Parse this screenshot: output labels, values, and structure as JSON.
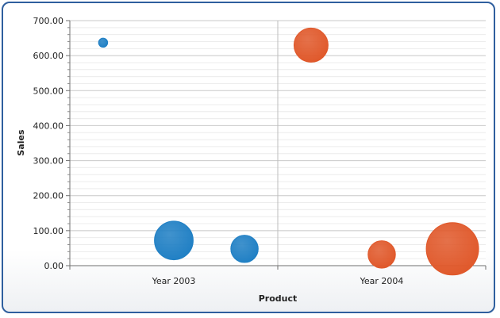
{
  "chart_data": {
    "type": "bubble",
    "title": "",
    "xlabel": "Product",
    "ylabel": "Sales",
    "categories": [
      "Year 2003",
      "Year 2004"
    ],
    "ylim": [
      0,
      700
    ],
    "ytick_values": [
      0,
      100,
      200,
      300,
      400,
      500,
      600,
      700
    ],
    "ytick_labels": [
      "0.00",
      "100.00",
      "200.00",
      "300.00",
      "400.00",
      "500.00",
      "600.00",
      "700.00"
    ],
    "grid": true,
    "legend": "none",
    "colors": {
      "Year 2003": "#1f7fc4",
      "Year 2004": "#e0582a"
    },
    "points": [
      {
        "category": "Year 2003",
        "x": 0.16,
        "y": 637,
        "size": 1
      },
      {
        "category": "Year 2003",
        "x": 0.5,
        "y": 72,
        "size": 18
      },
      {
        "category": "Year 2003",
        "x": 0.84,
        "y": 48,
        "size": 9
      },
      {
        "category": "Year 2004",
        "x": 0.16,
        "y": 630,
        "size": 14
      },
      {
        "category": "Year 2004",
        "x": 0.5,
        "y": 32,
        "size": 9
      },
      {
        "category": "Year 2004",
        "x": 0.84,
        "y": 48,
        "size": 33
      }
    ]
  }
}
